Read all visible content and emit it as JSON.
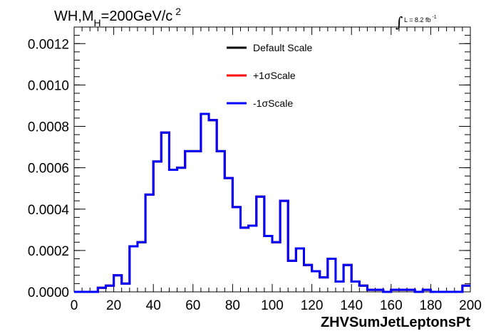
{
  "chart_data": {
    "type": "line",
    "title": "WH,M",
    "title_sub": "H",
    "title_rest": "=200GeV/c",
    "title_sup": "2",
    "lumi_label": "L = 8.2 fb",
    "lumi_sup": "-1",
    "xlabel": "ZHVSumJetLeptonsPt",
    "ylabel": "",
    "xlim": [
      0,
      200
    ],
    "ylim": [
      0,
      0.00128
    ],
    "x_ticks": [
      0,
      20,
      40,
      60,
      80,
      100,
      120,
      140,
      160,
      180,
      200
    ],
    "x_tick_labels": [
      "0",
      "20",
      "40",
      "60",
      "80",
      "100",
      "120",
      "140",
      "160",
      "180",
      "200"
    ],
    "y_ticks": [
      0,
      0.0002,
      0.0004,
      0.0006,
      0.0008,
      0.001,
      0.0012
    ],
    "y_tick_labels": [
      "0.0000",
      "0.0002",
      "0.0004",
      "0.0006",
      "0.0008",
      "0.0010",
      "0.0012"
    ],
    "grid": false,
    "legend_position": "top-right",
    "bin_edges": [
      0,
      4,
      8,
      12,
      16,
      20,
      24,
      28,
      32,
      36,
      40,
      44,
      48,
      52,
      56,
      60,
      64,
      68,
      72,
      76,
      80,
      84,
      88,
      92,
      96,
      100,
      104,
      108,
      112,
      116,
      120,
      124,
      128,
      132,
      136,
      140,
      144,
      148,
      152,
      156,
      160,
      164,
      168,
      172,
      176,
      180,
      184,
      188,
      192,
      196,
      200
    ],
    "series": [
      {
        "name": "Default Scale",
        "color": "#000000",
        "values": [
          0,
          0,
          0,
          2e-05,
          3e-05,
          8e-05,
          4e-05,
          0.00022,
          0.00024,
          0.00047,
          0.00063,
          0.00077,
          0.00059,
          0.0006,
          0.00068,
          0.00068,
          0.00086,
          0.00083,
          0.00068,
          0.00055,
          0.00041,
          0.00031,
          0.00032,
          0.00046,
          0.00027,
          0.00024,
          0.00044,
          0.00015,
          0.00021,
          0.00013,
          0.0001,
          7e-05,
          0.00016,
          5e-05,
          0.00013,
          5e-05,
          3e-05,
          1e-05,
          1e-05,
          0,
          1e-05,
          1e-05,
          1e-05,
          0,
          1e-05,
          0,
          0,
          0,
          0,
          3e-05
        ]
      },
      {
        "name": "+1σScale",
        "color": "#ff0000",
        "values": [
          0,
          0,
          0,
          2e-05,
          3e-05,
          8e-05,
          4e-05,
          0.00022,
          0.00024,
          0.00047,
          0.00063,
          0.00077,
          0.00059,
          0.0006,
          0.00068,
          0.00068,
          0.00086,
          0.00083,
          0.00068,
          0.00055,
          0.00041,
          0.00031,
          0.00032,
          0.00046,
          0.00027,
          0.00024,
          0.00044,
          0.00015,
          0.00021,
          0.00013,
          0.0001,
          7e-05,
          0.00016,
          5e-05,
          0.00013,
          5e-05,
          3e-05,
          1e-05,
          1e-05,
          0,
          1e-05,
          1e-05,
          1e-05,
          0,
          1e-05,
          0,
          0,
          0,
          0,
          3e-05
        ]
      },
      {
        "name": "-1σScale",
        "color": "#0000ff",
        "values": [
          0,
          0,
          0,
          2e-05,
          3e-05,
          8e-05,
          4e-05,
          0.00022,
          0.00024,
          0.00047,
          0.00063,
          0.00077,
          0.00059,
          0.0006,
          0.00068,
          0.00068,
          0.00086,
          0.00083,
          0.00068,
          0.00055,
          0.00041,
          0.00031,
          0.00032,
          0.00046,
          0.00027,
          0.00024,
          0.00044,
          0.00015,
          0.00021,
          0.00013,
          0.0001,
          7e-05,
          0.00016,
          5e-05,
          0.00013,
          5e-05,
          3e-05,
          1e-05,
          1e-05,
          0,
          1e-05,
          1e-05,
          1e-05,
          0,
          1e-05,
          0,
          0,
          0,
          0,
          3e-05
        ]
      }
    ]
  }
}
